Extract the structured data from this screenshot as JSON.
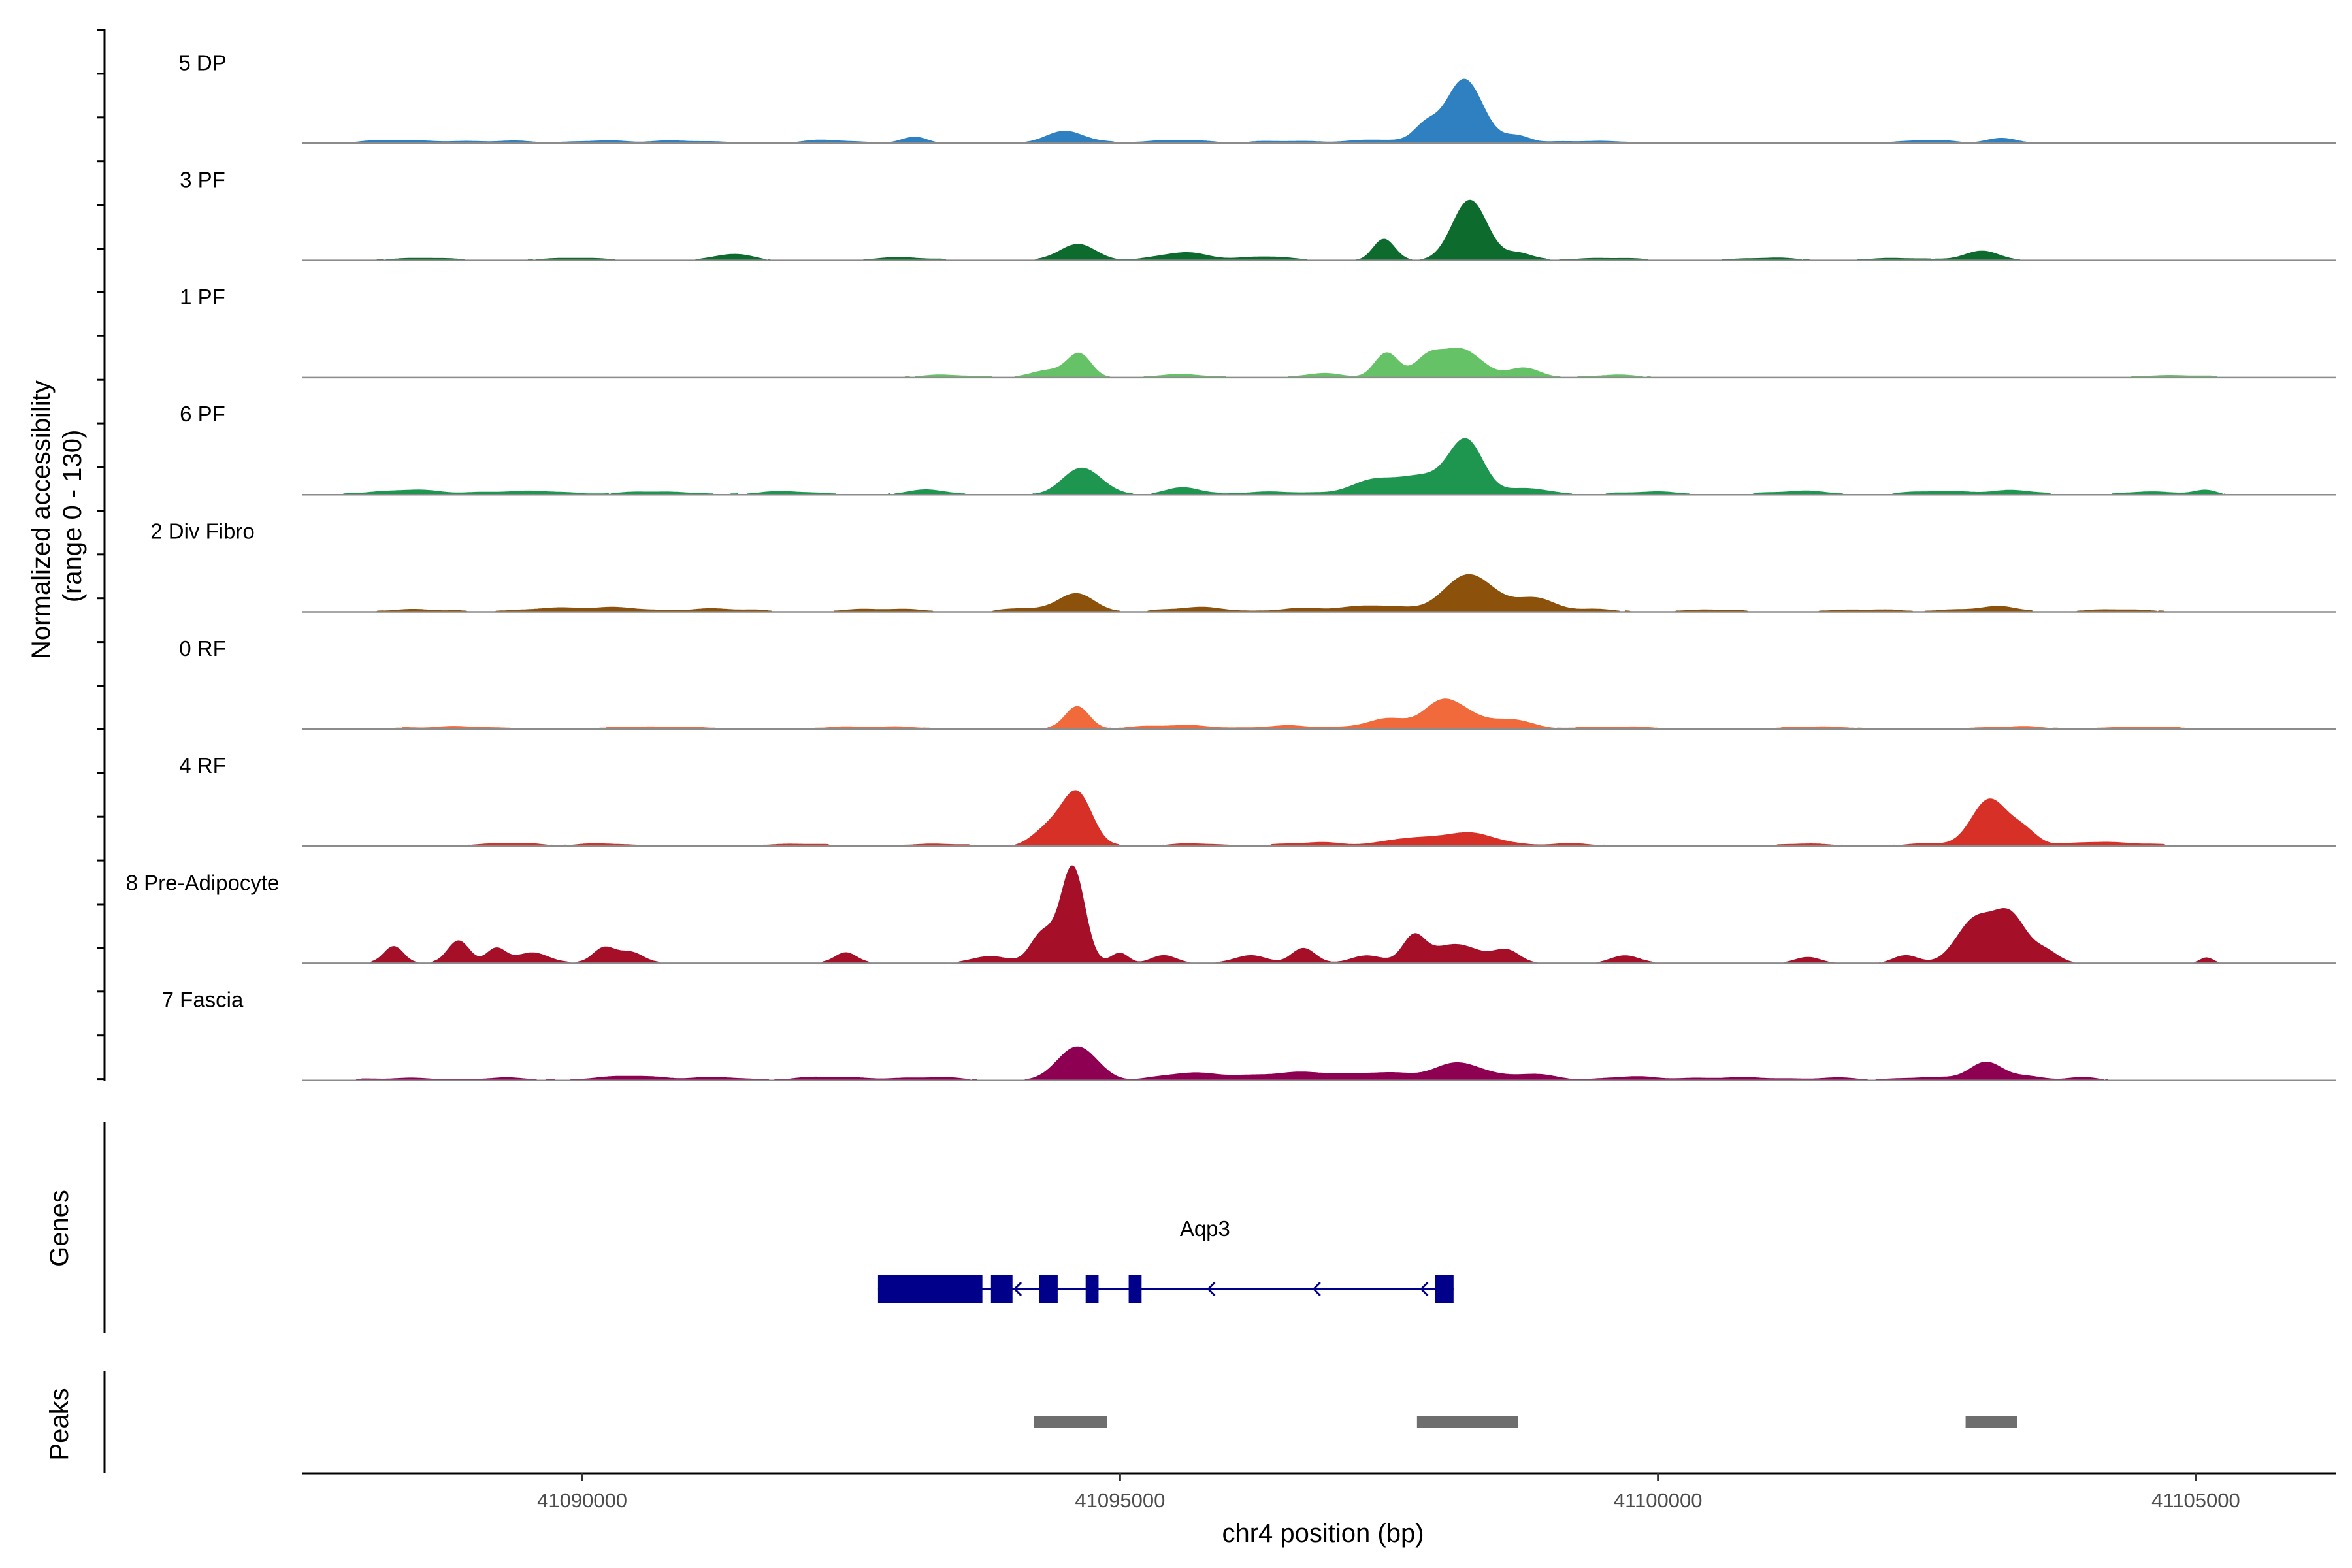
{
  "chart_data": {
    "type": "area",
    "title": "",
    "ylabel_lines": [
      "Normalized accessibility",
      "(range 0 - 130)"
    ],
    "y_range": [
      0,
      130
    ],
    "xlabel": "chr4 position (bp)",
    "xlim": [
      41087400,
      41106300
    ],
    "x_ticks": [
      41090000,
      41095000,
      41100000,
      41105000
    ],
    "x_tick_labels": [
      "41090000",
      "41095000",
      "41100000",
      "41105000"
    ],
    "grid": false,
    "legend": "none",
    "series": [
      {
        "name": "5 DP",
        "color": "#2F80C0",
        "peaks": [
          [
            41088300,
            4,
            300
          ],
          [
            41089200,
            3,
            300
          ],
          [
            41090200,
            3,
            300
          ],
          [
            41091000,
            3,
            300
          ],
          [
            41092300,
            4,
            250
          ],
          [
            41093100,
            8,
            120
          ],
          [
            41094500,
            16,
            180
          ],
          [
            41095500,
            4,
            300
          ],
          [
            41096600,
            3,
            300
          ],
          [
            41097400,
            5,
            200
          ],
          [
            41097840,
            22,
            110
          ],
          [
            41098200,
            85,
            170
          ],
          [
            41098700,
            10,
            120
          ],
          [
            41099400,
            3,
            300
          ],
          [
            41102500,
            4,
            250
          ],
          [
            41103200,
            6,
            150
          ]
        ]
      },
      {
        "name": "3 PF",
        "color": "#0E6B2E",
        "peaks": [
          [
            41088500,
            3,
            300
          ],
          [
            41089900,
            3,
            300
          ],
          [
            41091400,
            8,
            180
          ],
          [
            41093000,
            4,
            250
          ],
          [
            41094600,
            22,
            160
          ],
          [
            41095600,
            10,
            250
          ],
          [
            41096400,
            5,
            200
          ],
          [
            41097450,
            28,
            100
          ],
          [
            41098250,
            80,
            160
          ],
          [
            41098700,
            10,
            120
          ],
          [
            41099500,
            3,
            300
          ],
          [
            41101000,
            3,
            300
          ],
          [
            41102200,
            3,
            250
          ],
          [
            41103000,
            12,
            170
          ]
        ]
      },
      {
        "name": "1 PF",
        "color": "#66C266",
        "peaks": [
          [
            41093400,
            3,
            300
          ],
          [
            41094350,
            10,
            150
          ],
          [
            41094620,
            30,
            110
          ],
          [
            41095600,
            4,
            250
          ],
          [
            41096900,
            5,
            200
          ],
          [
            41097480,
            32,
            110
          ],
          [
            41097850,
            20,
            120
          ],
          [
            41098150,
            38,
            200
          ],
          [
            41098750,
            12,
            150
          ],
          [
            41099600,
            3,
            250
          ],
          [
            41104800,
            3,
            300
          ]
        ]
      },
      {
        "name": "6 PF",
        "color": "#1F9650",
        "peaks": [
          [
            41088400,
            6,
            350
          ],
          [
            41089500,
            5,
            300
          ],
          [
            41090700,
            4,
            300
          ],
          [
            41091900,
            4,
            300
          ],
          [
            41093200,
            6,
            200
          ],
          [
            41094650,
            35,
            180
          ],
          [
            41095600,
            10,
            150
          ],
          [
            41096400,
            4,
            250
          ],
          [
            41097400,
            20,
            250
          ],
          [
            41097850,
            20,
            200
          ],
          [
            41098220,
            70,
            160
          ],
          [
            41098800,
            8,
            200
          ],
          [
            41099900,
            4,
            250
          ],
          [
            41101300,
            5,
            250
          ],
          [
            41102600,
            5,
            250
          ],
          [
            41103300,
            6,
            200
          ],
          [
            41104600,
            4,
            250
          ],
          [
            41105100,
            5,
            100
          ]
        ]
      },
      {
        "name": "2 Div Fibro",
        "color": "#8C510A",
        "peaks": [
          [
            41088500,
            3,
            300
          ],
          [
            41089700,
            4,
            300
          ],
          [
            41090300,
            5,
            300
          ],
          [
            41091300,
            4,
            300
          ],
          [
            41092800,
            4,
            300
          ],
          [
            41094150,
            5,
            200
          ],
          [
            41094600,
            24,
            160
          ],
          [
            41095700,
            6,
            250
          ],
          [
            41096700,
            4,
            250
          ],
          [
            41097400,
            8,
            300
          ],
          [
            41098250,
            50,
            220
          ],
          [
            41098850,
            18,
            180
          ],
          [
            41099400,
            3,
            250
          ],
          [
            41100500,
            3,
            250
          ],
          [
            41101900,
            3,
            300
          ],
          [
            41102900,
            3,
            250
          ],
          [
            41103200,
            6,
            150
          ],
          [
            41104300,
            3,
            300
          ]
        ]
      },
      {
        "name": "0 RF",
        "color": "#F06A3C",
        "peaks": [
          [
            41088800,
            3,
            400
          ],
          [
            41090700,
            3,
            400
          ],
          [
            41092700,
            3,
            400
          ],
          [
            41094600,
            30,
            110
          ],
          [
            41095500,
            5,
            300
          ],
          [
            41096600,
            4,
            300
          ],
          [
            41097500,
            14,
            200
          ],
          [
            41097950,
            16,
            150
          ],
          [
            41098120,
            28,
            200
          ],
          [
            41098650,
            12,
            180
          ],
          [
            41099600,
            3,
            300
          ],
          [
            41101500,
            3,
            300
          ],
          [
            41103300,
            3,
            300
          ],
          [
            41104500,
            3,
            300
          ]
        ]
      },
      {
        "name": "4 RF",
        "color": "#D73027",
        "peaks": [
          [
            41089300,
            4,
            250
          ],
          [
            41090200,
            3,
            250
          ],
          [
            41092000,
            3,
            250
          ],
          [
            41093300,
            3,
            250
          ],
          [
            41094330,
            22,
            140
          ],
          [
            41094600,
            70,
            140
          ],
          [
            41095700,
            3,
            250
          ],
          [
            41096800,
            5,
            250
          ],
          [
            41097600,
            8,
            200
          ],
          [
            41098200,
            18,
            280
          ],
          [
            41099200,
            3,
            250
          ],
          [
            41101400,
            3,
            250
          ],
          [
            41102500,
            3,
            250
          ],
          [
            41103080,
            62,
            160
          ],
          [
            41103400,
            20,
            130
          ],
          [
            41104000,
            4,
            250
          ],
          [
            41104400,
            3,
            250
          ]
        ]
      },
      {
        "name": "8 Pre-Adipocyte",
        "color": "#A50F28",
        "peaks": [
          [
            41088250,
            23,
            90
          ],
          [
            41088850,
            30,
            100
          ],
          [
            41089200,
            20,
            90
          ],
          [
            41089550,
            14,
            150
          ],
          [
            41090200,
            20,
            100
          ],
          [
            41090450,
            15,
            120
          ],
          [
            41092450,
            15,
            100
          ],
          [
            41093800,
            10,
            150
          ],
          [
            41094280,
            40,
            110
          ],
          [
            41094560,
            128,
            110
          ],
          [
            41095000,
            13,
            80
          ],
          [
            41095400,
            10,
            120
          ],
          [
            41096200,
            10,
            150
          ],
          [
            41096700,
            20,
            110
          ],
          [
            41097300,
            10,
            150
          ],
          [
            41097730,
            30,
            100
          ],
          [
            41098100,
            25,
            250
          ],
          [
            41098600,
            15,
            120
          ],
          [
            41099700,
            10,
            130
          ],
          [
            41101400,
            8,
            120
          ],
          [
            41102300,
            10,
            120
          ],
          [
            41102950,
            58,
            170
          ],
          [
            41103280,
            60,
            150
          ],
          [
            41103600,
            15,
            120
          ],
          [
            41105100,
            7,
            60
          ]
        ]
      },
      {
        "name": "7 Fascia",
        "color": "#8E0152",
        "peaks": [
          [
            41088300,
            3,
            300
          ],
          [
            41089300,
            3,
            300
          ],
          [
            41090400,
            6,
            250
          ],
          [
            41091200,
            4,
            300
          ],
          [
            41092300,
            5,
            250
          ],
          [
            41093200,
            4,
            300
          ],
          [
            41094600,
            45,
            180
          ],
          [
            41095700,
            10,
            300
          ],
          [
            41096600,
            10,
            300
          ],
          [
            41097400,
            10,
            350
          ],
          [
            41098150,
            22,
            220
          ],
          [
            41098800,
            8,
            250
          ],
          [
            41099800,
            5,
            250
          ],
          [
            41100700,
            4,
            300
          ],
          [
            41101600,
            3,
            300
          ],
          [
            41102600,
            4,
            300
          ],
          [
            41103050,
            22,
            150
          ],
          [
            41103400,
            6,
            150
          ],
          [
            41103950,
            4,
            150
          ]
        ]
      }
    ],
    "genes": [
      {
        "name": "Aqp3",
        "strand": "-",
        "start": 41092750,
        "end": 41098100,
        "exons": [
          [
            41092750,
            41093720
          ],
          [
            41093800,
            41094000
          ],
          [
            41094250,
            41094420
          ],
          [
            41094680,
            41094800
          ],
          [
            41095080,
            41095200
          ],
          [
            41097930,
            41098100
          ]
        ]
      }
    ],
    "gene_track_label": "Genes",
    "peaks_track_label": "Peaks",
    "peak_regions": [
      [
        41094200,
        41094880
      ],
      [
        41097760,
        41098700
      ],
      [
        41102860,
        41103340
      ]
    ],
    "colors": {
      "gene": "#00008B",
      "peak": "#6E6E6E",
      "baseline": "#8C8C8C"
    }
  }
}
